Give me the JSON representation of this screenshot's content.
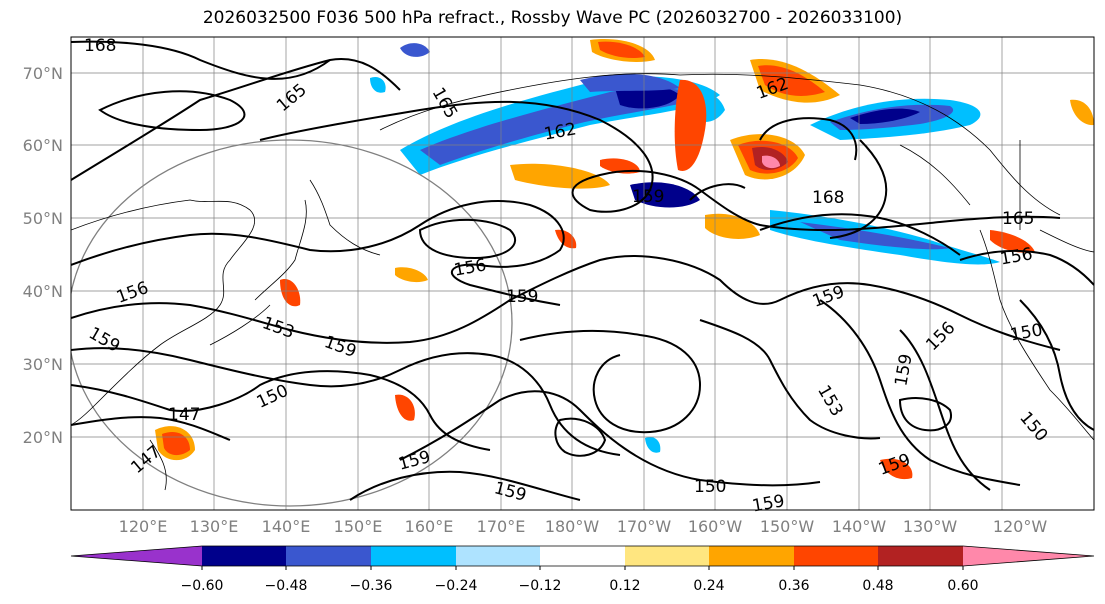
{
  "title": "2026032500 F036 500 hPa refract., Rossby Wave PC (2026032700 - 2026033100)",
  "lat_labels": [
    "70°N",
    "60°N",
    "50°N",
    "40°N",
    "30°N",
    "20°N"
  ],
  "lon_labels": [
    "120°E",
    "130°E",
    "140°E",
    "150°E",
    "160°E",
    "170°E",
    "180°W",
    "170°W",
    "160°W",
    "150°W",
    "140°W",
    "130°W",
    "120°W"
  ],
  "contour_labels": [
    "168",
    "165",
    "165",
    "162",
    "162",
    "159",
    "168",
    "165",
    "156",
    "156",
    "159",
    "159",
    "156",
    "156",
    "159",
    "153",
    "159",
    "150",
    "147",
    "147",
    "159",
    "159",
    "150",
    "159",
    "159",
    "153",
    "150",
    "150",
    "159"
  ],
  "colorbar": {
    "ticks": [
      "−0.60",
      "−0.48",
      "−0.36",
      "−0.24",
      "−0.12",
      "0.12",
      "0.24",
      "0.36",
      "0.48",
      "0.60"
    ],
    "colors": [
      "#9932cc",
      "#00008b",
      "#3a57cf",
      "#00bfff",
      "#aee3ff",
      "#ffffff",
      "#ffe680",
      "#ffa500",
      "#ff4500",
      "#b22222",
      "#ff88aa"
    ]
  }
}
